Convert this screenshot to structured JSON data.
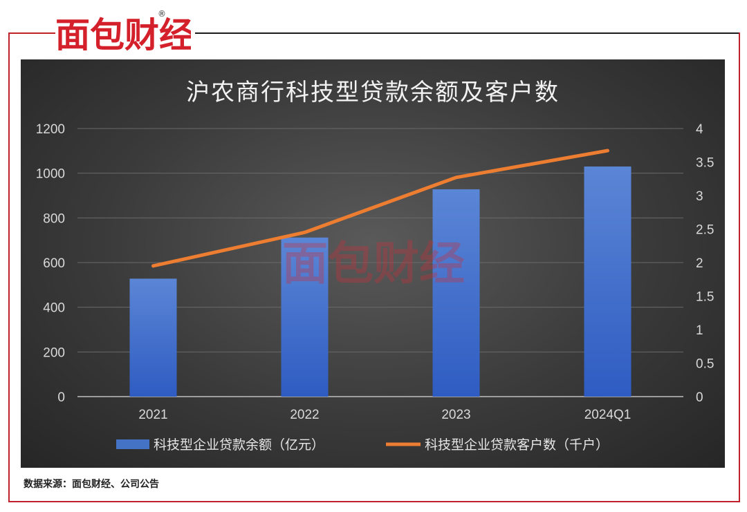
{
  "brand": {
    "logo_text": "面包财经",
    "registered_mark": "®"
  },
  "chart_data": {
    "type": "bar+line",
    "title": "沪农商行科技型贷款余额及客户数",
    "categories": [
      "2021",
      "2022",
      "2023",
      "2024Q1"
    ],
    "y_left": {
      "ticks": [
        "0",
        "200",
        "400",
        "600",
        "800",
        "1000",
        "1200"
      ],
      "range": [
        0,
        1200
      ]
    },
    "y_right": {
      "ticks": [
        "0",
        "0.5",
        "1",
        "1.5",
        "2",
        "2.5",
        "3",
        "3.5",
        "4"
      ],
      "range": [
        0,
        4
      ]
    },
    "series": [
      {
        "name": "科技型企业贷款余额（亿元）",
        "type": "bar",
        "axis": "left",
        "color": "#4472c4",
        "values": [
          528,
          712,
          928,
          1030
        ]
      },
      {
        "name": "科技型企业贷款客户数（千户）",
        "type": "line",
        "axis": "right",
        "color": "#ed7d31",
        "values": [
          1.95,
          2.45,
          3.27,
          3.67
        ]
      }
    ],
    "grid": true,
    "legend": "bottom-center"
  },
  "footer": {
    "source": "数据来源：面包财经、公司公告"
  }
}
